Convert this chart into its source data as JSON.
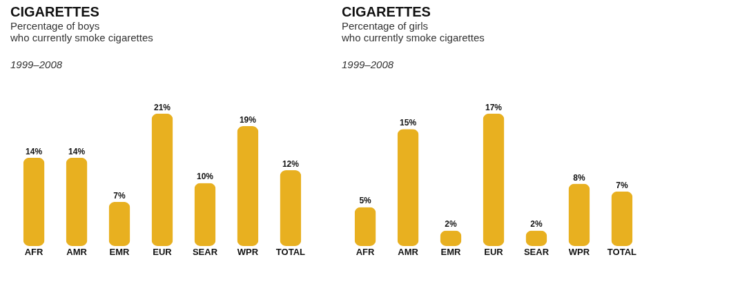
{
  "chart_data": [
    {
      "type": "bar",
      "title": "CIGARETTES",
      "subtitle": "Percentage of boys\nwho currently smoke cigarettes",
      "annotations": [
        "1999–2008"
      ],
      "categories": [
        "AFR",
        "AMR",
        "EMR",
        "EUR",
        "SEAR",
        "WPR",
        "TOTAL"
      ],
      "values": [
        14,
        14,
        7,
        21,
        10,
        19,
        12
      ],
      "value_labels": [
        "14%",
        "14%",
        "7%",
        "21%",
        "10%",
        "19%",
        "12%"
      ],
      "color": "#e8b020",
      "grid": false
    },
    {
      "type": "bar",
      "title": "CIGARETTES",
      "subtitle": "Percentage of girls\nwho currently smoke cigarettes",
      "annotations": [
        "1999–2008"
      ],
      "categories": [
        "AFR",
        "AMR",
        "EMR",
        "EUR",
        "SEAR",
        "WPR",
        "TOTAL"
      ],
      "values": [
        5,
        15,
        2,
        17,
        2,
        8,
        7
      ],
      "value_labels": [
        "5%",
        "15%",
        "2%",
        "17%",
        "2%",
        "8%",
        "7%"
      ],
      "color": "#e8b020",
      "grid": false
    }
  ]
}
